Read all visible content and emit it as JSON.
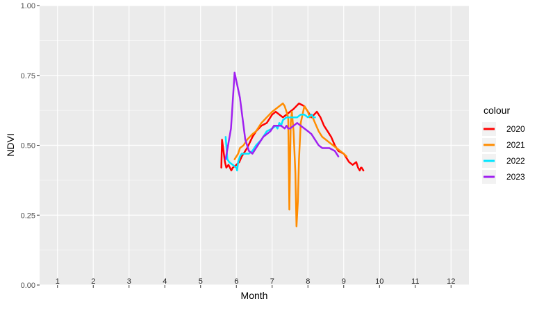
{
  "chart_data": {
    "type": "line",
    "xlabel": "Month",
    "ylabel": "NDVI",
    "xlim": [
      0.5,
      12.5
    ],
    "ylim": [
      0,
      1
    ],
    "x_ticks": [
      1,
      2,
      3,
      4,
      5,
      6,
      7,
      8,
      9,
      10,
      11,
      12
    ],
    "x_tick_labels": [
      "1",
      "2",
      "3",
      "4",
      "5",
      "6",
      "7",
      "8",
      "9",
      "10",
      "11",
      "12"
    ],
    "y_ticks": [
      0,
      0.25,
      0.5,
      0.75,
      1
    ],
    "y_tick_labels": [
      "0.00",
      "0.25",
      "0.50",
      "0.75",
      "1.00"
    ],
    "grid": true,
    "legend": {
      "title": "colour",
      "position": "right",
      "entries": [
        "2020",
        "2021",
        "2022",
        "2023"
      ]
    },
    "series": [
      {
        "name": "2020",
        "color": "#ff0000",
        "x": [
          5.58,
          5.6,
          5.62,
          5.68,
          5.72,
          5.78,
          5.86,
          5.9,
          6.0,
          6.08,
          6.15,
          6.2,
          6.3,
          6.45,
          6.55,
          6.7,
          6.85,
          7.0,
          7.1,
          7.3,
          7.4,
          7.5,
          7.6,
          7.75,
          7.9,
          8.0,
          8.1,
          8.25,
          8.35,
          8.45,
          8.55,
          8.65,
          8.75,
          8.85,
          9.0,
          9.15,
          9.25,
          9.35,
          9.4,
          9.45,
          9.48,
          9.5,
          9.55
        ],
        "y": [
          0.42,
          0.52,
          0.5,
          0.44,
          0.42,
          0.43,
          0.41,
          0.42,
          0.43,
          0.44,
          0.46,
          0.47,
          0.49,
          0.53,
          0.55,
          0.57,
          0.58,
          0.61,
          0.62,
          0.6,
          0.61,
          0.62,
          0.63,
          0.65,
          0.64,
          0.62,
          0.6,
          0.62,
          0.6,
          0.57,
          0.55,
          0.53,
          0.5,
          0.48,
          0.47,
          0.44,
          0.43,
          0.44,
          0.42,
          0.41,
          0.42,
          0.42,
          0.41
        ]
      },
      {
        "name": "2021",
        "color": "#ff8c00",
        "x": [
          5.95,
          6.05,
          6.1,
          6.2,
          6.3,
          6.45,
          6.55,
          6.7,
          6.85,
          7.0,
          7.1,
          7.3,
          7.35,
          7.4,
          7.45,
          7.48,
          7.52,
          7.55,
          7.6,
          7.65,
          7.68,
          7.72,
          7.75,
          7.8,
          7.85,
          7.9,
          8.0,
          8.05,
          8.1,
          8.2,
          8.3,
          8.4,
          8.5,
          8.6,
          8.7,
          8.8,
          8.9,
          9.0,
          9.08
        ],
        "y": [
          0.45,
          0.47,
          0.49,
          0.5,
          0.52,
          0.54,
          0.55,
          0.58,
          0.6,
          0.62,
          0.63,
          0.65,
          0.64,
          0.62,
          0.6,
          0.27,
          0.58,
          0.62,
          0.55,
          0.4,
          0.21,
          0.3,
          0.45,
          0.58,
          0.61,
          0.64,
          0.62,
          0.6,
          0.61,
          0.58,
          0.55,
          0.53,
          0.52,
          0.51,
          0.5,
          0.49,
          0.48,
          0.47,
          0.46
        ]
      },
      {
        "name": "2022",
        "color": "#00e5ff",
        "x": [
          5.7,
          5.75,
          5.8,
          5.9,
          6.0,
          6.02,
          6.05,
          6.1,
          6.15,
          6.25,
          6.35,
          6.45,
          6.55,
          6.7,
          6.85,
          7.0,
          7.1,
          7.15,
          7.2,
          7.25,
          7.3,
          7.4,
          7.5,
          7.6,
          7.7,
          7.8,
          7.9,
          8.0,
          8.1,
          8.15,
          8.2
        ],
        "y": [
          0.53,
          0.45,
          0.44,
          0.43,
          0.42,
          0.41,
          0.44,
          0.46,
          0.47,
          0.47,
          0.47,
          0.48,
          0.5,
          0.52,
          0.55,
          0.56,
          0.57,
          0.56,
          0.58,
          0.57,
          0.59,
          0.6,
          0.6,
          0.6,
          0.6,
          0.61,
          0.61,
          0.6,
          0.61,
          0.6,
          0.6
        ]
      },
      {
        "name": "2023",
        "color": "#a020f0",
        "x": [
          5.7,
          5.85,
          5.95,
          6.1,
          6.25,
          6.35,
          6.45,
          6.6,
          6.75,
          6.95,
          7.05,
          7.15,
          7.25,
          7.35,
          7.4,
          7.45,
          7.5,
          7.6,
          7.7,
          7.8,
          7.9,
          8.0,
          8.1,
          8.2,
          8.3,
          8.4,
          8.5,
          8.6,
          8.75,
          8.85
        ],
        "y": [
          0.45,
          0.56,
          0.76,
          0.67,
          0.52,
          0.48,
          0.47,
          0.5,
          0.53,
          0.55,
          0.57,
          0.57,
          0.57,
          0.56,
          0.57,
          0.56,
          0.56,
          0.57,
          0.58,
          0.57,
          0.56,
          0.55,
          0.54,
          0.52,
          0.5,
          0.49,
          0.49,
          0.49,
          0.48,
          0.46
        ]
      }
    ]
  }
}
